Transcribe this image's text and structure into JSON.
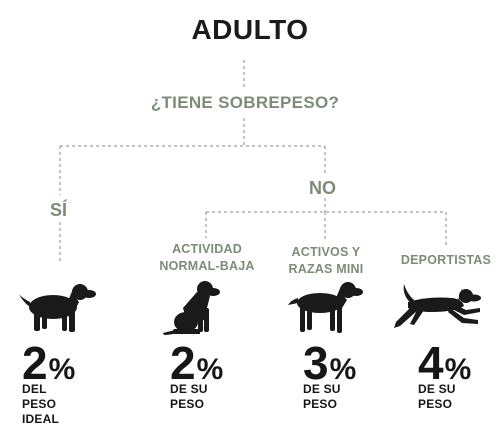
{
  "title": "ADULTO",
  "question": "¿TIENE SOBREPESO?",
  "branches": {
    "yes": "SÍ",
    "no": "NO"
  },
  "categories": [
    {
      "line1": "ACTIVIDAD",
      "line2": "NORMAL-BAJA"
    },
    {
      "line1": "ACTIVOS Y",
      "line2": "RAZAS MINI"
    },
    {
      "line1": "DEPORTISTAS",
      "line2": ""
    }
  ],
  "results": [
    {
      "value": "2",
      "unit": "%",
      "desc1": "DEL",
      "desc2": "PESO",
      "desc3": "IDEAL",
      "dog_icon": "standing-dog-icon"
    },
    {
      "value": "2",
      "unit": "%",
      "desc1": "DE SU",
      "desc2": "PESO",
      "desc3": "",
      "dog_icon": "sitting-dog-icon"
    },
    {
      "value": "3",
      "unit": "%",
      "desc1": "DE SU",
      "desc2": "PESO",
      "desc3": "",
      "dog_icon": "standing-dog-icon"
    },
    {
      "value": "4",
      "unit": "%",
      "desc1": "DE SU",
      "desc2": "PESO",
      "desc3": "",
      "dog_icon": "running-dog-icon"
    }
  ],
  "colors": {
    "accent": "#7d8c77",
    "text": "#161616",
    "line": "#8a8a8a"
  }
}
